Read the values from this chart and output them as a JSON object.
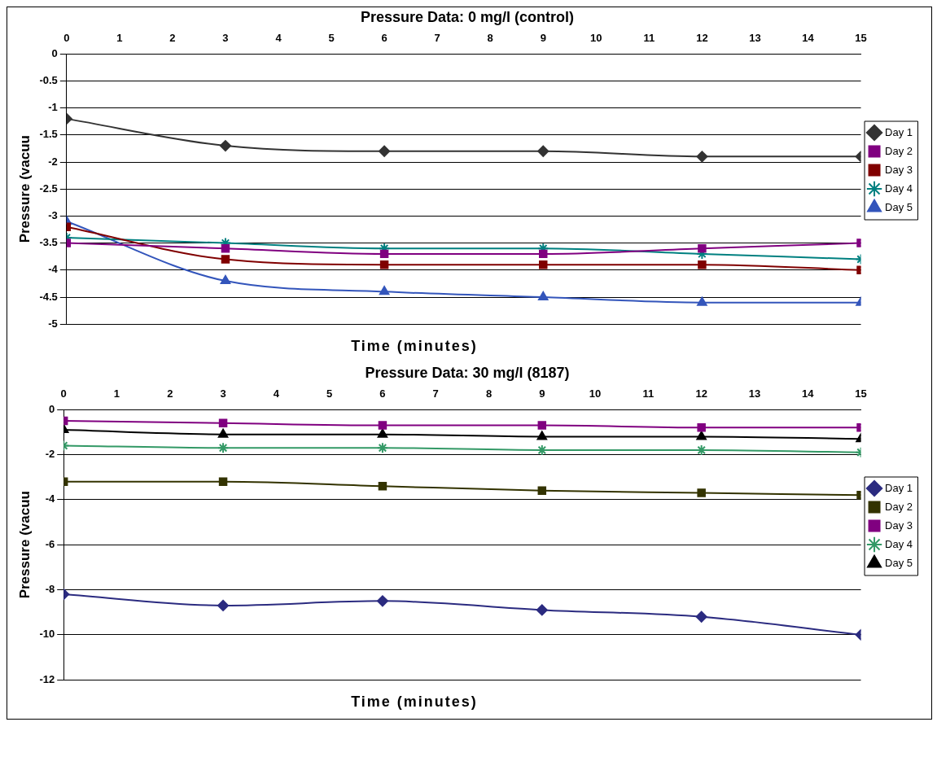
{
  "chart_data": [
    {
      "type": "line",
      "title": "Pressure Data: 0 mg/l (control)",
      "xlabel": "Time (minutes)",
      "ylabel": "Pressure (vacuu",
      "xlim": [
        0,
        15
      ],
      "xticks": [
        0,
        1,
        2,
        3,
        4,
        5,
        6,
        7,
        8,
        9,
        10,
        11,
        12,
        13,
        14,
        15
      ],
      "ylim": [
        -5,
        0
      ],
      "yticks": [
        -5,
        -4.5,
        -4,
        -3.5,
        -3,
        -2.5,
        -2,
        -1.5,
        -1,
        -0.5,
        0
      ],
      "grid": "y",
      "legend": "right",
      "line_style": "solid",
      "x": [
        0,
        3,
        6,
        9,
        12,
        15
      ],
      "series": [
        {
          "name": "Day 1",
          "color": "#333333",
          "marker": "diamond",
          "values": [
            -1.2,
            -1.7,
            -1.8,
            -1.8,
            -1.9,
            -1.9
          ]
        },
        {
          "name": "Day 2",
          "color": "#800080",
          "marker": "square",
          "values": [
            -3.5,
            -3.6,
            -3.7,
            -3.7,
            -3.6,
            -3.5
          ]
        },
        {
          "name": "Day 3",
          "color": "#800000",
          "marker": "square",
          "values": [
            -3.2,
            -3.8,
            -3.9,
            -3.9,
            -3.9,
            -4.0
          ]
        },
        {
          "name": "Day 4",
          "color": "#008080",
          "marker": "cross",
          "values": [
            -3.4,
            -3.5,
            -3.6,
            -3.6,
            -3.7,
            -3.8
          ]
        },
        {
          "name": "Day 5",
          "color": "#3355bb",
          "marker": "triangle",
          "values": [
            -3.1,
            -4.2,
            -4.4,
            -4.5,
            -4.6,
            -4.6
          ]
        }
      ]
    },
    {
      "type": "line",
      "title": "Pressure Data: 30 mg/l (8187)",
      "xlabel": "Time (minutes)",
      "ylabel": "Pressure (vacuu",
      "xlim": [
        0,
        15
      ],
      "xticks": [
        0,
        1,
        2,
        3,
        4,
        5,
        6,
        7,
        8,
        9,
        10,
        11,
        12,
        13,
        14,
        15
      ],
      "ylim": [
        -12,
        0
      ],
      "yticks": [
        -12,
        -10,
        -8,
        -6,
        -4,
        -2,
        0
      ],
      "grid": "y",
      "legend": "right",
      "line_style": "solid",
      "x": [
        0,
        3,
        6,
        9,
        12,
        15
      ],
      "series": [
        {
          "name": "Day 1",
          "color": "#2b2b80",
          "marker": "diamond",
          "values": [
            -8.2,
            -8.7,
            -8.5,
            -8.9,
            -9.2,
            -10.0
          ]
        },
        {
          "name": "Day 2",
          "color": "#333300",
          "marker": "square",
          "values": [
            -3.2,
            -3.2,
            -3.4,
            -3.6,
            -3.7,
            -3.8
          ]
        },
        {
          "name": "Day 3",
          "color": "#800080",
          "marker": "square",
          "values": [
            -0.5,
            -0.6,
            -0.7,
            -0.7,
            -0.8,
            -0.8
          ]
        },
        {
          "name": "Day 4",
          "color": "#339966",
          "marker": "cross",
          "values": [
            -1.6,
            -1.7,
            -1.7,
            -1.8,
            -1.8,
            -1.9
          ]
        },
        {
          "name": "Day 5",
          "color": "#000000",
          "marker": "triangle",
          "values": [
            -0.9,
            -1.1,
            -1.1,
            -1.2,
            -1.2,
            -1.3
          ]
        }
      ]
    }
  ]
}
